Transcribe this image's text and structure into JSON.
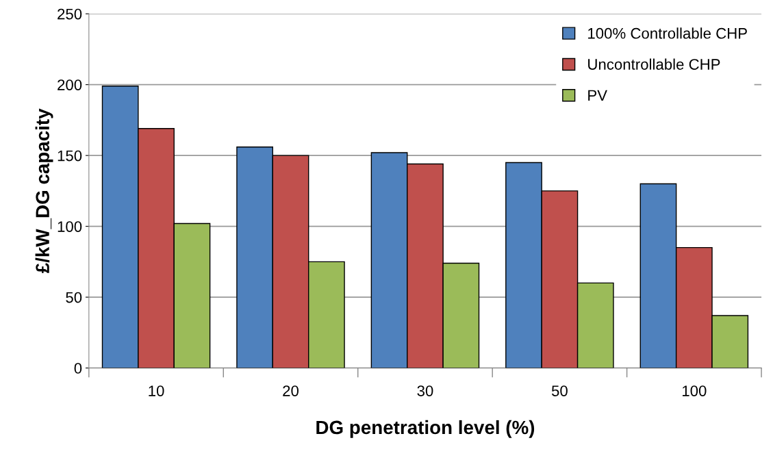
{
  "chart_data": {
    "type": "bar",
    "xlabel": "DG penetration level (%)",
    "ylabel": "£/kW_DG capacity",
    "categories": [
      "10",
      "20",
      "30",
      "50",
      "100"
    ],
    "series": [
      {
        "name": "100% Controllable CHP",
        "color": "#4f81bd",
        "values": [
          199,
          156,
          152,
          145,
          130
        ]
      },
      {
        "name": "Uncontrollable CHP",
        "color": "#c0504d",
        "values": [
          169,
          150,
          144,
          125,
          85
        ]
      },
      {
        "name": "PV",
        "color": "#9bbb59",
        "values": [
          102,
          75,
          74,
          60,
          37
        ]
      }
    ],
    "ylim": [
      0,
      250
    ],
    "yticks": [
      0,
      50,
      100,
      150,
      200,
      250
    ],
    "grid": "y",
    "legend": "top right"
  }
}
